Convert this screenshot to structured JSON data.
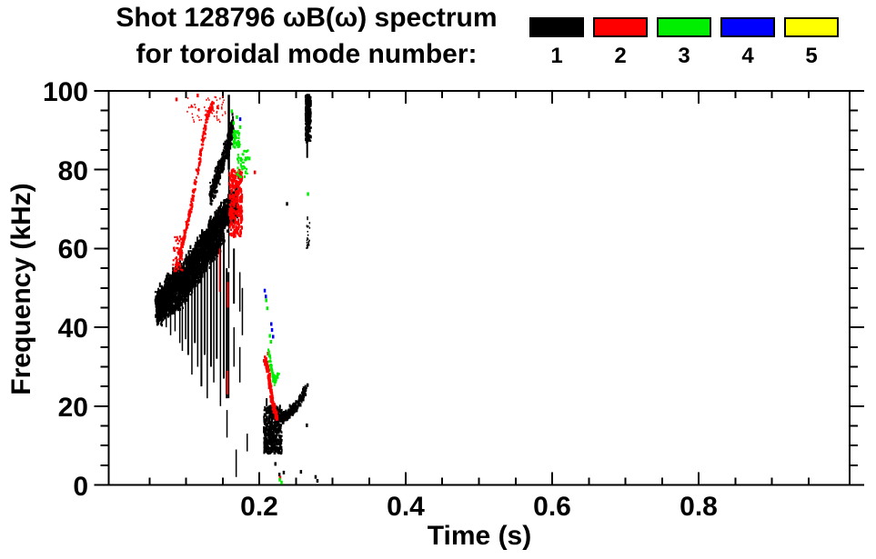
{
  "title": {
    "line1": "Shot 128796 ωB(ω) spectrum",
    "line2": "for toroidal mode number:"
  },
  "legend": {
    "entries": [
      {
        "label": "1",
        "color": "#000000"
      },
      {
        "label": "2",
        "color": "#ff0000"
      },
      {
        "label": "3",
        "color": "#00ee00"
      },
      {
        "label": "4",
        "color": "#0000ff"
      },
      {
        "label": "5",
        "color": "#ffff00"
      }
    ]
  },
  "axes": {
    "x": {
      "label": "Time (s)",
      "min": 0,
      "max": 1.0,
      "major": [
        0.2,
        0.4,
        0.6,
        0.8
      ],
      "major_labels": [
        "0.2",
        "0.4",
        "0.6",
        "0.8"
      ],
      "minor_step": 0.05
    },
    "y": {
      "label": "Frequency (kHz)",
      "min": 0,
      "max": 100,
      "major": [
        0,
        20,
        40,
        60,
        80,
        100
      ],
      "major_labels": [
        "0",
        "20",
        "40",
        "60",
        "80",
        "100"
      ],
      "minor_step": 5
    }
  },
  "chart_data": {
    "type": "scatter",
    "title": "Shot 128796 ωB(ω) spectrum for toroidal mode number",
    "xlabel": "Time (s)",
    "ylabel": "Frequency (kHz)",
    "xlim": [
      0,
      1.0
    ],
    "ylim": [
      0,
      100
    ],
    "grid": false,
    "legend_position": "top-right",
    "series": [
      {
        "name": "n=1",
        "mode": 1,
        "color": "#000000",
        "clusters": [
          {
            "kind": "path",
            "pts": [
              [
                0.058,
                45
              ],
              [
                0.08,
                50
              ],
              [
                0.1,
                54
              ],
              [
                0.12,
                60
              ],
              [
                0.145,
                67
              ],
              [
                0.168,
                72
              ]
            ],
            "hw": 5.5,
            "n": 2100,
            "s": 2,
            "e": 3
          },
          {
            "kind": "path",
            "pts": [
              [
                0.06,
                42.5
              ],
              [
                0.09,
                47
              ],
              [
                0.12,
                55
              ],
              [
                0.15,
                63
              ]
            ],
            "hw": 3.5,
            "n": 800,
            "s": 2,
            "e": 2
          },
          {
            "kind": "path",
            "pts": [
              [
                0.132,
                73
              ],
              [
                0.145,
                80
              ],
              [
                0.155,
                86
              ],
              [
                0.163,
                91
              ]
            ],
            "hw": 4.5,
            "n": 420,
            "s": 2,
            "e": 2
          },
          {
            "kind": "vlines",
            "items": [
              [
                0.073,
                40,
                45,
                1.5
              ],
              [
                0.079,
                38,
                46,
                1.5
              ],
              [
                0.085,
                39,
                47,
                1.5
              ],
              [
                0.0915,
                36,
                48,
                1.5
              ],
              [
                0.095,
                34,
                49,
                1.5
              ],
              [
                0.0995,
                37,
                50,
                1.5
              ],
              [
                0.103,
                33,
                52,
                2
              ],
              [
                0.108,
                28,
                52,
                1.5
              ],
              [
                0.112,
                36,
                54,
                2
              ],
              [
                0.116,
                30,
                55,
                1.5
              ],
              [
                0.121,
                25,
                56,
                2
              ],
              [
                0.1255,
                33,
                57,
                2
              ],
              [
                0.129,
                22,
                58,
                1.5
              ],
              [
                0.134,
                30,
                60,
                2
              ],
              [
                0.138,
                26,
                61,
                1.5
              ],
              [
                0.142,
                32,
                62,
                2
              ],
              [
                0.147,
                20,
                63,
                1.5
              ],
              [
                0.1515,
                27,
                64,
                2
              ],
              [
                0.1555,
                22,
                55,
                2
              ],
              [
                0.156,
                12,
                19,
                1.5
              ],
              [
                0.1585,
                80,
                99,
                2.5
              ],
              [
                0.1585,
                55,
                80,
                1.5
              ],
              [
                0.158,
                22,
                54,
                2
              ],
              [
                0.1655,
                46,
                60,
                2
              ],
              [
                0.1655,
                30,
                40,
                1.5
              ],
              [
                0.1685,
                2,
                9,
                1.5
              ],
              [
                0.1735,
                44,
                54,
                1.5
              ],
              [
                0.1735,
                26,
                35,
                1.5
              ],
              [
                0.177,
                38,
                50,
                1.5
              ],
              [
                0.1835,
                8.5,
                13,
                1.5
              ],
              [
                0.21,
                20,
                22,
                2
              ],
              [
                0.2655,
                83,
                87.5,
                2
              ]
            ]
          },
          {
            "kind": "box",
            "t": [
              0.262,
              0.2695
            ],
            "f": [
              87,
              99
            ],
            "n": 240,
            "s": 2,
            "e": 2
          },
          {
            "kind": "box",
            "t": [
              0.2635,
              0.268
            ],
            "f": [
              60,
              68
            ],
            "n": 26,
            "s": 1.5,
            "e": 1.5
          },
          {
            "kind": "box",
            "t": [
              0.205,
              0.2295
            ],
            "f": [
              8,
              20
            ],
            "n": 520,
            "s": 2,
            "e": 2
          },
          {
            "kind": "path",
            "pts": [
              [
                0.23,
                17
              ],
              [
                0.245,
                19
              ],
              [
                0.2555,
                21.5
              ],
              [
                0.2625,
                24.5
              ]
            ],
            "hw": 2.2,
            "n": 200,
            "s": 2,
            "e": 2
          },
          {
            "kind": "dots",
            "s": 2.5,
            "pts": [
              [
                0.238,
                71.5
              ],
              [
                0.266,
                25.5
              ],
              [
                0.265,
                15.3
              ],
              [
                0.2275,
                2.8
              ],
              [
                0.2335,
                3.3
              ],
              [
                0.257,
                3.5
              ],
              [
                0.277,
                2.2
              ],
              [
                0.2795,
                1.2
              ],
              [
                0.222,
                5.5
              ]
            ]
          }
        ]
      },
      {
        "name": "n=2",
        "mode": 2,
        "color": "#ff0000",
        "clusters": [
          {
            "kind": "path",
            "pts": [
              [
                0.086,
                55
              ],
              [
                0.095,
                62
              ],
              [
                0.105,
                70
              ],
              [
                0.115,
                80
              ],
              [
                0.122,
                88
              ],
              [
                0.128,
                93.5
              ],
              [
                0.136,
                97
              ]
            ],
            "hw": 1.8,
            "n": 260,
            "s": 2,
            "e": 1.5
          },
          {
            "kind": "box",
            "t": [
              0.081,
              0.094
            ],
            "f": [
              54,
              63
            ],
            "n": 55,
            "s": 2,
            "e": 1.5
          },
          {
            "kind": "box",
            "t": [
              0.1,
              0.155
            ],
            "f": [
              92,
              99
            ],
            "n": 55,
            "s": 1.5,
            "e": 1.5
          },
          {
            "kind": "box",
            "t": [
              0.158,
              0.1755
            ],
            "f": [
              63,
              80
            ],
            "n": 330,
            "s": 2,
            "e": 2
          },
          {
            "kind": "vlines",
            "items": [
              [
                0.146,
                49,
                60,
                1.5
              ],
              [
                0.157,
                45,
                51.5,
                2
              ],
              [
                0.1565,
                23,
                29,
                2
              ]
            ]
          },
          {
            "kind": "path",
            "pts": [
              [
                0.2065,
                32
              ],
              [
                0.21,
                29.5
              ],
              [
                0.213,
                25.5
              ],
              [
                0.216,
                21.5
              ],
              [
                0.2195,
                18.8
              ],
              [
                0.2225,
                17.3
              ]
            ],
            "hw": 1.1,
            "n": 170,
            "s": 2.5,
            "e": 1.5
          },
          {
            "kind": "dots",
            "s": 2.5,
            "pts": [
              [
                0.087,
                98
              ],
              [
                0.116,
                99
              ],
              [
                0.143,
                96
              ],
              [
                0.194,
                79.5
              ],
              [
                0.2285,
                2.0
              ],
              [
                0.212,
                33.5
              ]
            ]
          }
        ]
      },
      {
        "name": "n=3",
        "mode": 3,
        "color": "#00ee00",
        "clusters": [
          {
            "kind": "box",
            "t": [
              0.163,
              0.1725
            ],
            "f": [
              85.5,
              90
            ],
            "n": 55,
            "s": 2,
            "e": 1.5
          },
          {
            "kind": "box",
            "t": [
              0.168,
              0.184
            ],
            "f": [
              78,
              85
            ],
            "n": 45,
            "s": 2,
            "e": 1.5
          },
          {
            "kind": "dots",
            "s": 2.5,
            "pts": [
              [
                0.1625,
                95
              ],
              [
                0.165,
                92
              ],
              [
                0.1695,
                93.5
              ],
              [
                0.174,
                91
              ],
              [
                0.1865,
                83
              ],
              [
                0.1815,
                79.5
              ]
            ]
          },
          {
            "kind": "path",
            "pts": [
              [
                0.2115,
                34
              ],
              [
                0.214,
                31
              ],
              [
                0.217,
                28
              ],
              [
                0.2205,
                26
              ],
              [
                0.2255,
                28.5
              ]
            ],
            "hw": 1.0,
            "n": 85,
            "s": 2,
            "e": 1.5
          },
          {
            "kind": "dots",
            "s": 2.5,
            "pts": [
              [
                0.2095,
                47
              ],
              [
                0.211,
                45
              ],
              [
                0.2145,
                38
              ],
              [
                0.216,
                36.5
              ],
              [
                0.228,
                1.5
              ],
              [
                0.2305,
                0.8
              ],
              [
                0.2665,
                74
              ]
            ]
          }
        ]
      },
      {
        "name": "n=4",
        "mode": 4,
        "color": "#0000ff",
        "clusters": [
          {
            "kind": "dots",
            "s": 2.5,
            "pts": [
              [
                0.174,
                93
              ],
              [
                0.2075,
                49.5
              ],
              [
                0.209,
                48
              ],
              [
                0.2165,
                41
              ],
              [
                0.2175,
                39.5
              ],
              [
                0.219,
                37.8
              ]
            ]
          }
        ]
      },
      {
        "name": "n=5",
        "mode": 5,
        "color": "#ffff00",
        "clusters": []
      }
    ]
  }
}
